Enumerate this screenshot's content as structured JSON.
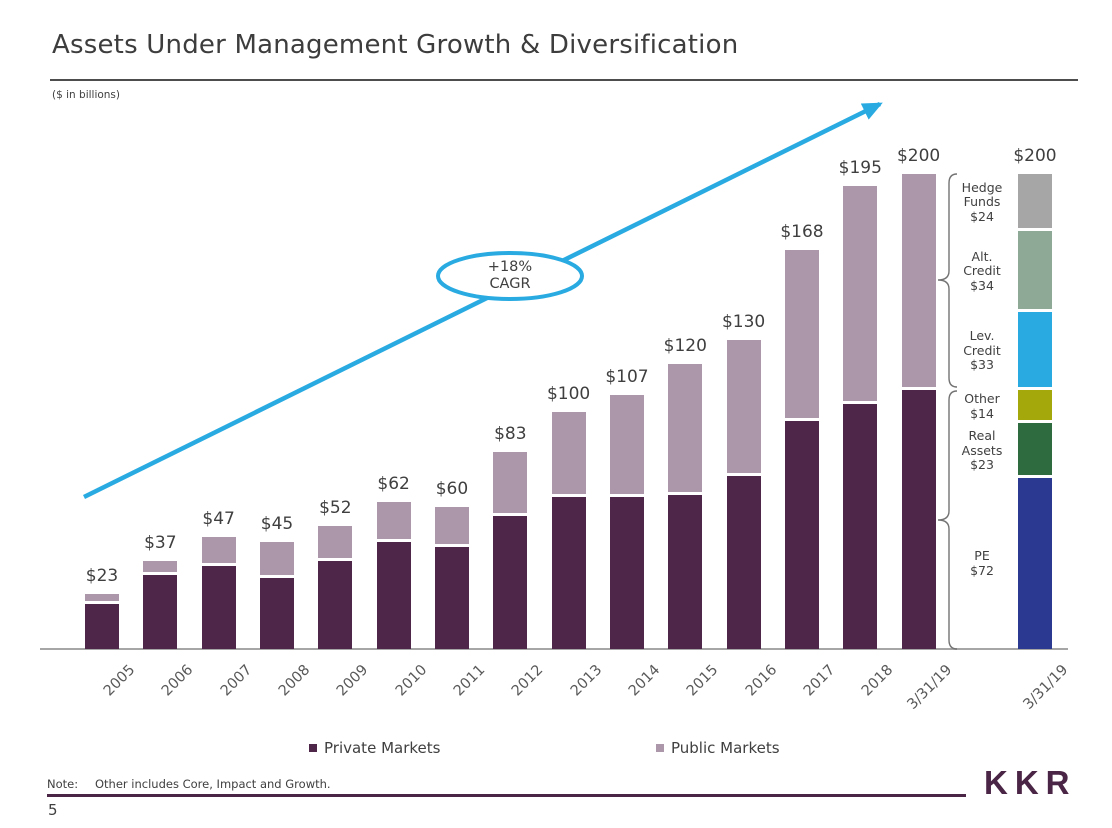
{
  "slide": {
    "title": "Assets Under Management Growth & Diversification",
    "units_note": "($ in billions)",
    "note_label": "Note:",
    "note_text": "Other includes Core, Impact and Growth.",
    "page_number": "5",
    "logo_text": "KKR"
  },
  "annotation": {
    "line1": "+18%",
    "line2": "CAGR",
    "color": "#29abe2"
  },
  "legend": {
    "items": [
      {
        "label": "Private Markets",
        "color": "#4d2649"
      },
      {
        "label": "Public Markets",
        "color": "#ab96aa"
      }
    ]
  },
  "chart_data": {
    "type": "bar",
    "stacked": true,
    "unit": "USD billions",
    "title": "Assets Under Management Growth & Diversification",
    "grid": false,
    "y_axis_visible": false,
    "ylim": [
      0,
      210
    ],
    "legend_position": "bottom",
    "categories": [
      "2005",
      "2006",
      "2007",
      "2008",
      "2009",
      "2010",
      "2011",
      "2012",
      "2013",
      "2014",
      "2015",
      "2016",
      "2017",
      "2018",
      "3/31/19"
    ],
    "series": [
      {
        "name": "Private Markets",
        "color": "#4d2649",
        "values": [
          19,
          31,
          35,
          30,
          37,
          45,
          43,
          56,
          64,
          64,
          65,
          73,
          96,
          103,
          109
        ]
      },
      {
        "name": "Public Markets",
        "color": "#ab96aa",
        "values": [
          4,
          6,
          12,
          15,
          15,
          17,
          17,
          27,
          36,
          43,
          55,
          57,
          72,
          92,
          91
        ]
      }
    ],
    "totals": [
      23,
      37,
      47,
      45,
      52,
      62,
      60,
      83,
      100,
      107,
      120,
      130,
      168,
      195,
      200
    ],
    "totals_labels": [
      "$23",
      "$37",
      "$47",
      "$45",
      "$52",
      "$62",
      "$60",
      "$83",
      "$100",
      "$107",
      "$120",
      "$130",
      "$168",
      "$195",
      "$200"
    ],
    "annotation": "+18% CAGR",
    "breakdown_bar": {
      "category": "3/31/19",
      "total": 200,
      "total_label": "$200",
      "segments": [
        {
          "label": "Hedge Funds",
          "value": 24,
          "value_label": "$24",
          "color": "#a6a6a6"
        },
        {
          "label": "Alt. Credit",
          "value": 34,
          "value_label": "$34",
          "color": "#8ea995"
        },
        {
          "label": "Lev. Credit",
          "value": 33,
          "value_label": "$33",
          "color": "#29abe2"
        },
        {
          "label": "Other",
          "value": 14,
          "value_label": "$14",
          "color": "#a4a80a"
        },
        {
          "label": "Real Assets",
          "value": 23,
          "value_label": "$23",
          "color": "#2e6b3e"
        },
        {
          "label": "PE",
          "value": 72,
          "value_label": "$72",
          "color": "#2b3990"
        }
      ]
    }
  }
}
